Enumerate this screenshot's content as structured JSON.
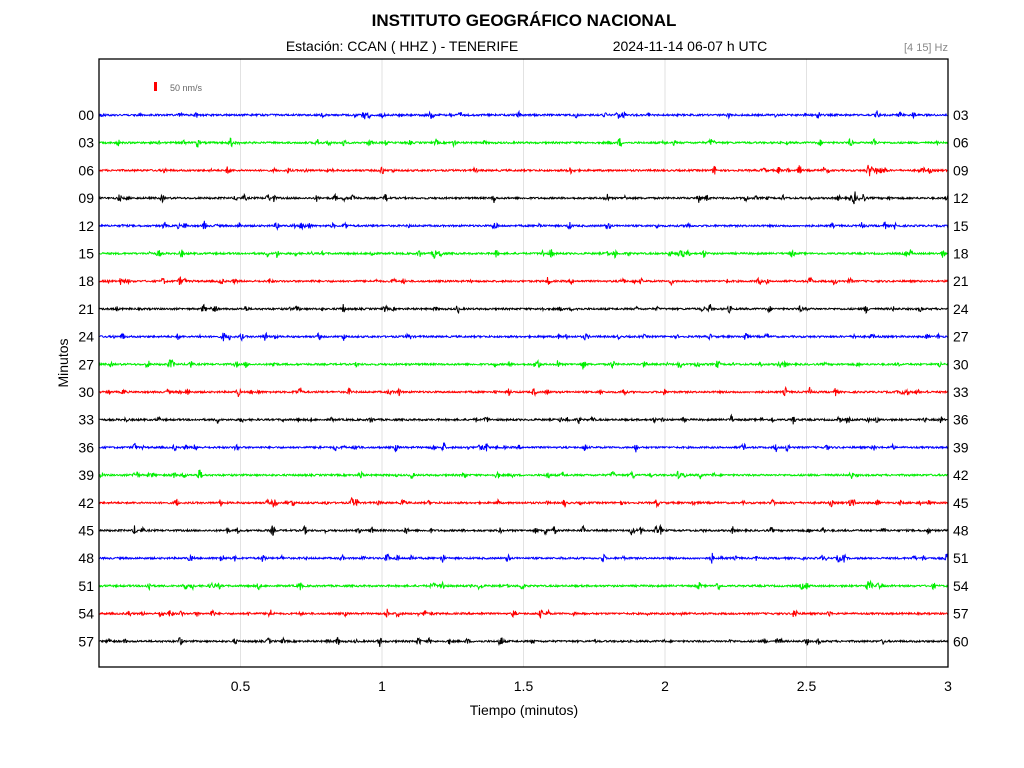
{
  "chart_data": {
    "type": "line",
    "title": "INSTITUTO GEOGRÁFICO NACIONAL",
    "subtitle_station": "Estación:  CCAN ( HHZ ) - TENERIFE",
    "subtitle_datetime": "2024-11-14  06-07 h UTC",
    "band_label": "[4 15] Hz",
    "scale_label": "50 nm/s",
    "xlabel": "Tiempo (minutos)",
    "ylabel": "Minutos",
    "xlim": [
      0,
      3
    ],
    "x_ticks": [
      "0.5",
      "1",
      "1.5",
      "2",
      "2.5",
      "3"
    ],
    "x_tick_values": [
      0.5,
      1,
      1.5,
      2,
      2.5,
      3
    ],
    "grid": true,
    "left_labels": [
      "00",
      "03",
      "06",
      "09",
      "12",
      "15",
      "18",
      "21",
      "24",
      "27",
      "30",
      "33",
      "36",
      "39",
      "42",
      "45",
      "48",
      "51",
      "54",
      "57"
    ],
    "right_labels": [
      "03",
      "06",
      "09",
      "12",
      "15",
      "18",
      "21",
      "24",
      "27",
      "30",
      "33",
      "36",
      "39",
      "42",
      "45",
      "48",
      "51",
      "54",
      "57",
      "60"
    ],
    "trace_colors": [
      "#0000ff",
      "#00ee00",
      "#ff0000",
      "#000000"
    ],
    "scale_bar_color": "#ff0000",
    "notable_events": [
      {
        "row": "54",
        "x": 2.46
      },
      {
        "row": "06",
        "x": 2.72
      },
      {
        "row": "09",
        "x": 2.67
      }
    ]
  }
}
